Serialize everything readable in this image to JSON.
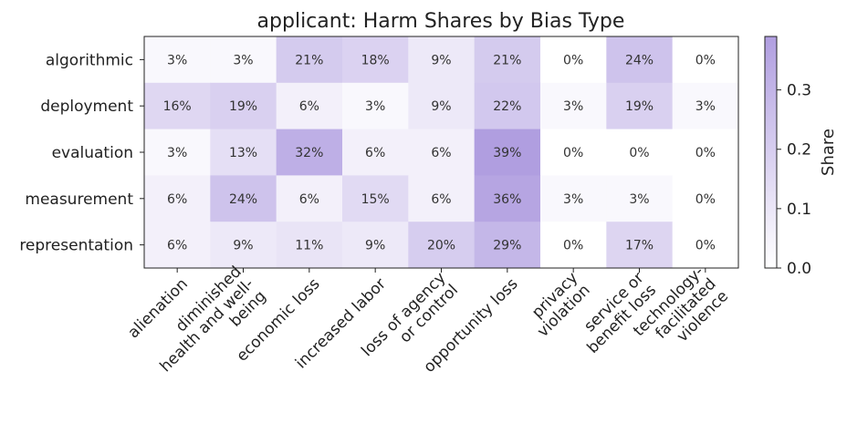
{
  "chart_data": {
    "type": "heatmap",
    "title": "applicant: Harm Shares by Bias Type",
    "rows": [
      "algorithmic",
      "deployment",
      "evaluation",
      "measurement",
      "representation"
    ],
    "columns": [
      [
        "alienation"
      ],
      [
        "diminished",
        "health and well-",
        "being"
      ],
      [
        "economic loss"
      ],
      [
        "increased labor"
      ],
      [
        "loss of agency",
        "or control"
      ],
      [
        "opportunity loss"
      ],
      [
        "privacy",
        "violation"
      ],
      [
        "service or",
        "benefit loss"
      ],
      [
        "technology-",
        "facilitated",
        "violence"
      ]
    ],
    "values": [
      [
        0.03,
        0.03,
        0.21,
        0.18,
        0.09,
        0.21,
        0.0,
        0.24,
        0.0
      ],
      [
        0.16,
        0.19,
        0.06,
        0.03,
        0.09,
        0.22,
        0.03,
        0.19,
        0.03
      ],
      [
        0.03,
        0.13,
        0.32,
        0.06,
        0.06,
        0.39,
        0.0,
        0.0,
        0.0
      ],
      [
        0.06,
        0.24,
        0.06,
        0.15,
        0.06,
        0.36,
        0.03,
        0.03,
        0.0
      ],
      [
        0.06,
        0.09,
        0.11,
        0.09,
        0.2,
        0.29,
        0.0,
        0.17,
        0.0
      ]
    ],
    "cell_labels": [
      [
        "3%",
        "3%",
        "21%",
        "18%",
        "9%",
        "21%",
        "0%",
        "24%",
        "0%"
      ],
      [
        "16%",
        "19%",
        "6%",
        "3%",
        "9%",
        "22%",
        "3%",
        "19%",
        "3%"
      ],
      [
        "3%",
        "13%",
        "32%",
        "6%",
        "6%",
        "39%",
        "0%",
        "0%",
        "0%"
      ],
      [
        "6%",
        "24%",
        "6%",
        "15%",
        "6%",
        "36%",
        "3%",
        "3%",
        "0%"
      ],
      [
        "6%",
        "9%",
        "11%",
        "9%",
        "20%",
        "29%",
        "0%",
        "17%",
        "0%"
      ]
    ],
    "colorbar": {
      "label": "Share",
      "min": 0.0,
      "max": 0.39,
      "ticks": [
        0.0,
        0.1,
        0.2,
        0.3
      ],
      "tick_labels": [
        "0.0",
        "0.1",
        "0.2",
        "0.3"
      ],
      "color_low": "#ffffff",
      "color_high": "#b09ee0"
    }
  }
}
